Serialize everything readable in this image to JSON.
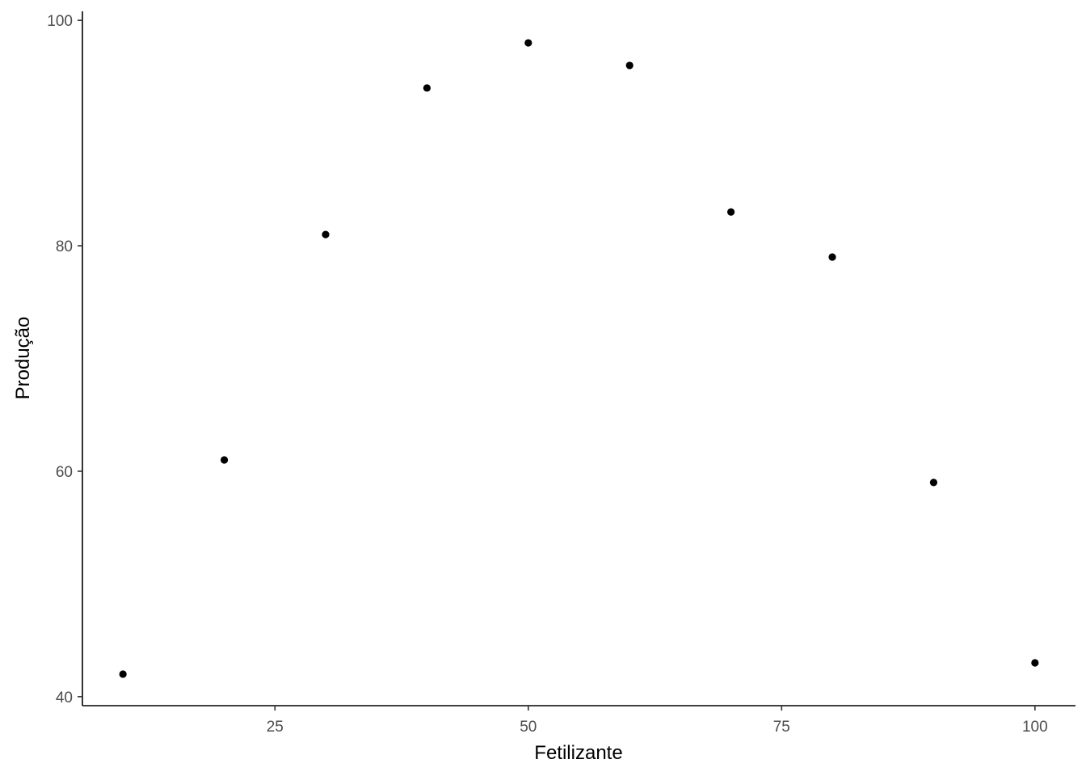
{
  "chart_data": {
    "type": "scatter",
    "title": "",
    "xlabel": "Fetilizante",
    "ylabel": "Produção",
    "xlim": [
      6,
      104
    ],
    "ylim": [
      39.2,
      100.8
    ],
    "x_ticks": [
      25,
      50,
      75,
      100
    ],
    "y_ticks": [
      40,
      60,
      80,
      100
    ],
    "grid": false,
    "legend": "none",
    "point_color": "#000000",
    "series": [
      {
        "x": [
          10,
          20,
          30,
          40,
          50,
          60,
          70,
          80,
          90,
          100
        ],
        "y": [
          42,
          61,
          81,
          94,
          98,
          96,
          83,
          79,
          59,
          43
        ]
      }
    ]
  }
}
